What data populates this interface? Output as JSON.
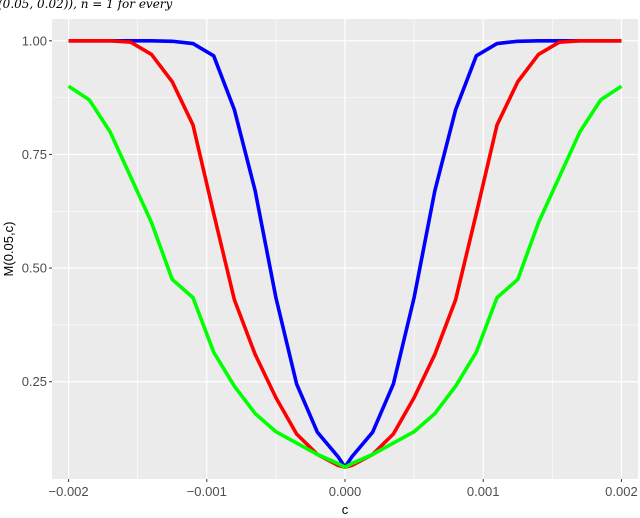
{
  "caption_fragment": "(0.05, 0.02)), n = 1 for every",
  "chart_data": {
    "type": "line",
    "title": "",
    "xlabel": "c",
    "ylabel": "M(0.05,c)",
    "xlim": [
      -0.00212,
      0.00212
    ],
    "ylim": [
      0.036,
      1.048
    ],
    "x_ticks": [
      -0.002,
      -0.001,
      0.0,
      0.001,
      0.002
    ],
    "x_tick_labels": [
      "−0.002",
      "−0.001",
      "0.000",
      "0.001",
      "0.002"
    ],
    "y_ticks": [
      0.25,
      0.5,
      0.75,
      1.0
    ],
    "y_tick_labels": [
      "0.25",
      "0.50",
      "0.75",
      "1.00"
    ],
    "grid": true,
    "legend": "none",
    "background": "#ebebeb",
    "x": [
      -0.002,
      -0.00185,
      -0.0017,
      -0.00155,
      -0.0014,
      -0.00125,
      -0.0011,
      -0.00095,
      -0.0008,
      -0.00065,
      -0.0005,
      -0.00035,
      -0.0002,
      -5e-05,
      0.0,
      5e-05,
      0.0002,
      0.00035,
      0.0005,
      0.00065,
      0.0008,
      0.00095,
      0.0011,
      0.00125,
      0.0014,
      0.00155,
      0.0017,
      0.00185,
      0.002
    ],
    "series": [
      {
        "color": "#0000ff",
        "values": [
          1.0,
          1.0,
          1.0,
          1.0,
          1.0,
          0.999,
          0.994,
          0.967,
          0.848,
          0.67,
          0.435,
          0.245,
          0.139,
          0.085,
          0.062,
          0.085,
          0.139,
          0.245,
          0.435,
          0.67,
          0.848,
          0.967,
          0.994,
          0.999,
          1.0,
          1.0,
          1.0,
          1.0,
          1.0
        ]
      },
      {
        "color": "#ff0000",
        "values": [
          1.0,
          1.0,
          1.0,
          0.997,
          0.97,
          0.91,
          0.815,
          0.62,
          0.43,
          0.31,
          0.215,
          0.135,
          0.09,
          0.066,
          0.062,
          0.066,
          0.09,
          0.135,
          0.215,
          0.31,
          0.43,
          0.62,
          0.815,
          0.91,
          0.97,
          0.997,
          1.0,
          1.0,
          1.0
        ]
      },
      {
        "color": "#00ff00",
        "values": [
          0.9,
          0.87,
          0.8,
          0.7,
          0.6,
          0.475,
          0.435,
          0.315,
          0.24,
          0.18,
          0.14,
          0.115,
          0.09,
          0.07,
          0.062,
          0.07,
          0.09,
          0.115,
          0.14,
          0.18,
          0.24,
          0.315,
          0.435,
          0.475,
          0.6,
          0.7,
          0.8,
          0.87,
          0.9
        ]
      }
    ]
  }
}
